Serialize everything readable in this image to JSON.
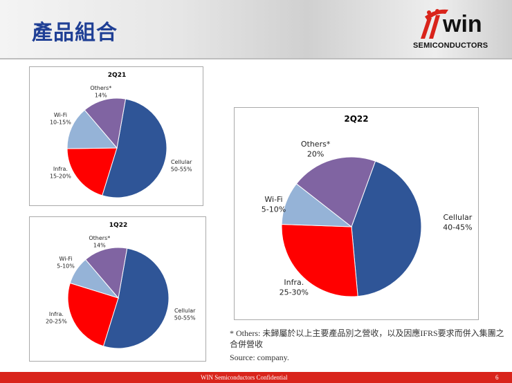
{
  "header": {
    "title": "產品組合"
  },
  "logo": {
    "brand": "win",
    "subtitle": "SEMICONDUCTORS"
  },
  "colors": {
    "Cellular": "#2f5597",
    "Infra.": "#ff0000",
    "Wi-Fi": "#95b3d7",
    "Others*": "#8064a2"
  },
  "chart_data": [
    {
      "type": "pie",
      "title": "2Q21",
      "slices": [
        {
          "label": "Cellular",
          "range": "50-55%",
          "value": 52
        },
        {
          "label": "Infra.",
          "range": "15-20%",
          "value": 20
        },
        {
          "label": "Wi-Fi",
          "range": "10-15%",
          "value": 14
        },
        {
          "label": "Others*",
          "range": "14%",
          "value": 14
        }
      ]
    },
    {
      "type": "pie",
      "title": "1Q22",
      "slices": [
        {
          "label": "Cellular",
          "range": "50-55%",
          "value": 52
        },
        {
          "label": "Infra.",
          "range": "20-25%",
          "value": 25
        },
        {
          "label": "Wi-Fi",
          "range": "5-10%",
          "value": 9
        },
        {
          "label": "Others*",
          "range": "14%",
          "value": 14
        }
      ]
    },
    {
      "type": "pie",
      "title": "2Q22",
      "slices": [
        {
          "label": "Cellular",
          "range": "40-45%",
          "value": 43
        },
        {
          "label": "Infra.",
          "range": "25-30%",
          "value": 27
        },
        {
          "label": "Wi-Fi",
          "range": "5-10%",
          "value": 10
        },
        {
          "label": "Others*",
          "range": "20%",
          "value": 20
        }
      ]
    }
  ],
  "notes": {
    "others": "* Others: 未歸屬於以上主要產品別之營收，以及因應IFRS要求而併入集團之合併營收",
    "source": "Source: company."
  },
  "footer": {
    "confidential": "WIN Semiconductors Confidential",
    "page": "6"
  }
}
